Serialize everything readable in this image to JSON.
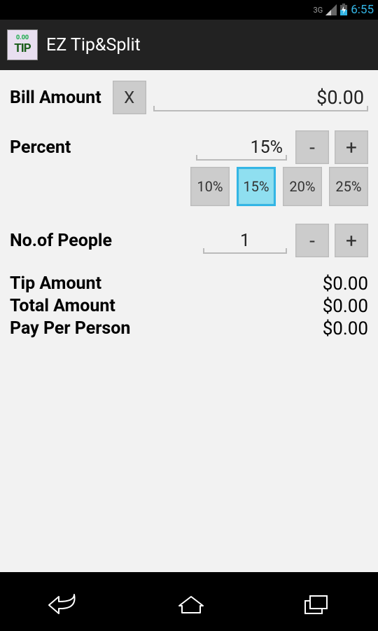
{
  "status": {
    "network": "3G",
    "time": "6:55"
  },
  "title": "EZ Tip&Split",
  "bill": {
    "label": "Bill Amount",
    "clear": "X",
    "value": "$0.00"
  },
  "percent": {
    "label": "Percent",
    "value": "15%",
    "minus": "-",
    "plus": "+",
    "presets": [
      "10%",
      "15%",
      "20%",
      "25%"
    ],
    "selected_index": 1
  },
  "people": {
    "label": "No.of People",
    "value": "1",
    "minus": "-",
    "plus": "+"
  },
  "results": {
    "tip": {
      "label": "Tip Amount",
      "value": "$0.00"
    },
    "total": {
      "label": "Total Amount",
      "value": "$0.00"
    },
    "pp": {
      "label": "Pay Per Person",
      "value": "$0.00"
    }
  },
  "colors": {
    "accent": "#33b5e5",
    "button_bg": "#cccccc",
    "selected_bg": "#8fdff0",
    "content_bg": "#f2f2f2",
    "titlebar_bg": "#222222"
  }
}
